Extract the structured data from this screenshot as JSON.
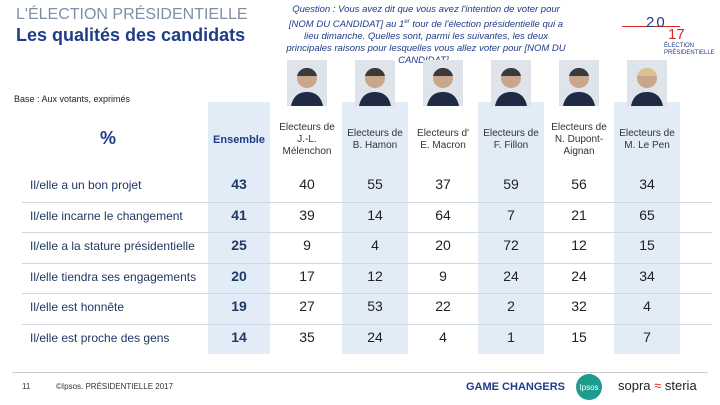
{
  "header": {
    "kicker": "L'ÉLECTION PRÉSIDENTIELLE",
    "title": "Les qualités des candidats"
  },
  "question": {
    "before": "Question : Vous avez dit que vous avez l'intention de voter pour [NOM DU CANDIDAT] au 1",
    "sup": "er",
    "after": " tour de l'élection présidentielle qui a lieu dimanche. Quelles sont, parmi les suivantes, les deux principales raisons pour lesquelles vous allez voter pour [NOM DU CANDIDAT] ."
  },
  "logo": {
    "year_top": "20",
    "year_bottom": "17",
    "line1": "ÉLECTION",
    "line2": "PRÉSIDENTIELLE"
  },
  "base": "Base :  Aux votants, exprimés",
  "table": {
    "corner": "%",
    "total_column": "Ensemble",
    "columns": [
      "Electeurs de J.-L. Mélenchon",
      "Electeurs de B. Hamon",
      "Electeurs d' E. Macron",
      "Electeurs de F. Fillon",
      "Electeurs de N. Dupont-Aignan",
      "Electeurs de M. Le Pen"
    ],
    "rows": [
      {
        "label": "Il/elle a un bon projet",
        "total": "43",
        "values": [
          "40",
          "55",
          "37",
          "59",
          "56",
          "34"
        ]
      },
      {
        "label": "Il/elle incarne le changement",
        "total": "41",
        "values": [
          "39",
          "14",
          "64",
          "7",
          "21",
          "65"
        ]
      },
      {
        "label": "Il/elle a la stature présidentielle",
        "total": "25",
        "values": [
          "9",
          "4",
          "20",
          "72",
          "12",
          "15"
        ]
      },
      {
        "label": "Il/elle tiendra ses engagements",
        "total": "20",
        "values": [
          "17",
          "12",
          "9",
          "24",
          "24",
          "34"
        ]
      },
      {
        "label": "Il/elle est honnête",
        "total": "19",
        "values": [
          "27",
          "53",
          "22",
          "2",
          "32",
          "4"
        ]
      },
      {
        "label": "Il/elle est proche des gens",
        "total": "14",
        "values": [
          "35",
          "24",
          "4",
          "1",
          "15",
          "7"
        ]
      }
    ]
  },
  "footer": {
    "page": "11",
    "source": "©Ipsos. PRÉSIDENTIELLE 2017",
    "tagline": "GAME CHANGERS",
    "brand1": "Ipsos",
    "brand2a": "sopra",
    "brand2b": "steria"
  }
}
